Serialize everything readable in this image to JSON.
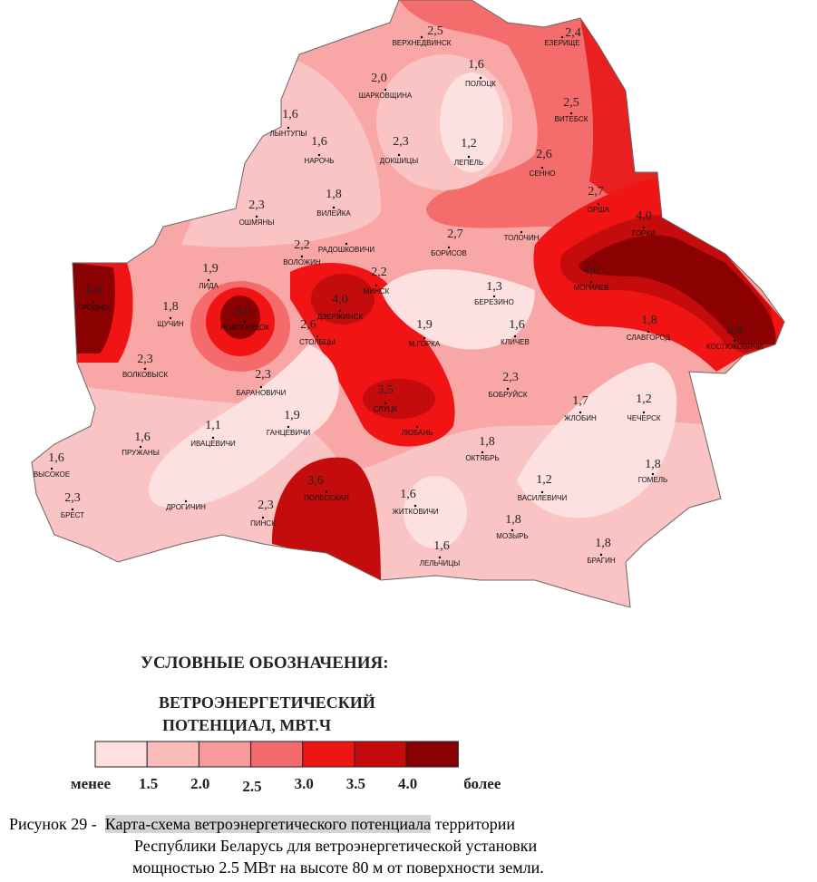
{
  "map": {
    "labels": [
      {
        "value": "2,5",
        "name": "ВЕРХНЕДВИНСК"
      },
      {
        "value": "2,4",
        "name": "ЕЗЕРИЩЕ"
      },
      {
        "value": "1,6",
        "name": "ПОЛОЦК"
      },
      {
        "value": "2,0",
        "name": "ШАРКОВЩИНА"
      },
      {
        "value": "2,5",
        "name": "ВИТЕБСК"
      },
      {
        "value": "1,6",
        "name": "ЛЫНТУПЫ"
      },
      {
        "value": "1,6",
        "name": "НАРОЧЬ"
      },
      {
        "value": "2,3",
        "name": "ДОКШИЦЫ"
      },
      {
        "value": "1,2",
        "name": "ЛЕПЕЛЬ"
      },
      {
        "value": "2,6",
        "name": "СЕННО"
      },
      {
        "value": "1,8",
        "name": "ВИЛЕЙКА"
      },
      {
        "value": "2,3",
        "name": "ОШМЯНЫ"
      },
      {
        "value": "2,7",
        "name": "ОРША"
      },
      {
        "value": "4,0",
        "name": "ГОРКИ"
      },
      {
        "name": "РАДОШКОВИЧИ"
      },
      {
        "value": "2,2",
        "name": "ВОЛОЖИН"
      },
      {
        "value": "2,7",
        "name": "БОРИСОВ"
      },
      {
        "name": "ТОЛОЧИН"
      },
      {
        "value": "1,9",
        "name": "ЛИДА"
      },
      {
        "value": "2,2",
        "name": "МИНСК"
      },
      {
        "value": "4,0",
        "name": "ГРОДНО"
      },
      {
        "value": "4,0",
        "name": "ДЗЕРЖИНСК"
      },
      {
        "value": "1,3",
        "name": "БЕРЕЗИНО"
      },
      {
        "value": "4,0",
        "name": "МОГИЛЕВ"
      },
      {
        "value": "1,8",
        "name": "ЩУЧИН"
      },
      {
        "value": "4,0",
        "name": "НОВОГРУДОК"
      },
      {
        "value": "1,6",
        "name": "КЛИЧЕВ"
      },
      {
        "value": "1,9",
        "name": "М.ГОРКА"
      },
      {
        "value": "1,8",
        "name": "СЛАВГОРОД"
      },
      {
        "value": "3,8",
        "name": "КОСТЮКОВИЧИ"
      },
      {
        "value": "2,6",
        "name": "СТОЛБЦЫ"
      },
      {
        "value": "2,3",
        "name": "ВОЛКОВЫСК"
      },
      {
        "value": "2,3",
        "name": "БАРАНОВИЧИ"
      },
      {
        "value": "3,5",
        "name": "СЛУЦК"
      },
      {
        "value": "2,3",
        "name": "БОБРУЙСК"
      },
      {
        "value": "1,7",
        "name": "ЖЛОБИН"
      },
      {
        "value": "1,2",
        "name": "ЧЕЧЕРСК"
      },
      {
        "value": "1,9",
        "name": "ГАНЦЕВИЧИ"
      },
      {
        "value": "1,1",
        "name": "ИВАЦЕВИЧИ"
      },
      {
        "name": "ЛЮБАНЬ"
      },
      {
        "value": "1,6",
        "name": "ПРУЖАНЫ"
      },
      {
        "value": "1,8",
        "name": "ОКТЯБРЬ"
      },
      {
        "value": "1,6",
        "name": "ВЫСОКОЕ"
      },
      {
        "value": "1,8",
        "name": "ГОМЕЛЬ"
      },
      {
        "value": "1,2",
        "name": "ВАСИЛЕВИЧИ"
      },
      {
        "value": "3,6",
        "name": "ПОЛЕССКАЯ"
      },
      {
        "value": "1,6",
        "name": "ЖИТКОВИЧИ"
      },
      {
        "value": "2,3",
        "name": "БРЕСТ"
      },
      {
        "name": "ДРОГИЧИН"
      },
      {
        "value": "2,3",
        "name": "ПИНСК"
      },
      {
        "value": "1,8",
        "name": "МОЗЫРЬ"
      },
      {
        "value": "1,6",
        "name": "ЛЕЛЬЧИЦЫ"
      },
      {
        "value": "1,8",
        "name": "БРАГИН"
      }
    ]
  },
  "legend": {
    "title": "УСЛОВНЫЕ ОБОЗНАЧЕНИЯ:",
    "subtitle_lines": [
      "ВЕТРОЭНЕРГЕТИЧЕСКИЙ",
      "ПОТЕНЦИАЛ, МВТ.Ч"
    ],
    "colors": [
      "#fde0e0",
      "#fbbcbc",
      "#f99a9a",
      "#f56a6a",
      "#f01414",
      "#c40c0c",
      "#8b0000"
    ],
    "labels": [
      "менее",
      "1.5",
      "2.0",
      "2.5",
      "3.0",
      "3.5",
      "4.0",
      "более"
    ]
  },
  "caption": {
    "prefix": "Рисунок 29 -  ",
    "highlight": "Карта-схема ветроэнергетического потенциала",
    "line1_rest": " территории",
    "line2": "Республики Беларусь для ветроэнергетической установки",
    "line3": "мощностью 2.5 МВт на высоте 80 м от поверхности земли."
  }
}
